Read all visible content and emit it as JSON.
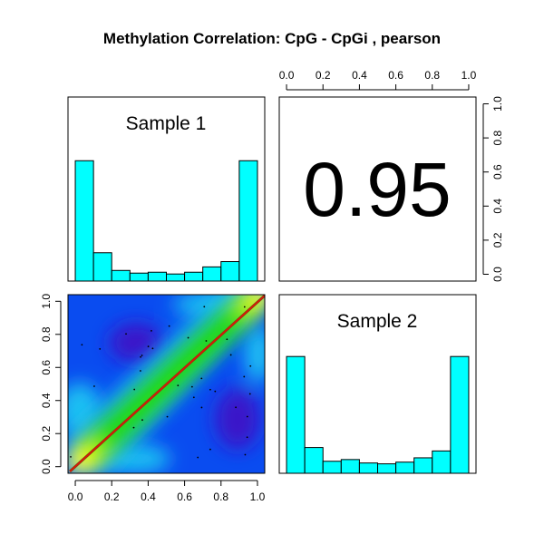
{
  "chart_data": {
    "type": "pairs",
    "title": "Methylation Correlation: CpG - CpGi , pearson",
    "samples": [
      "Sample 1",
      "Sample 2"
    ],
    "correlation": "0.95",
    "colors": {
      "histogram_fill": "#00ffff",
      "fit_line": "#ff0000",
      "smooth_line": "#8b4513",
      "frame": "#000000"
    },
    "axis_ticks": [
      "0.0",
      "0.2",
      "0.4",
      "0.6",
      "0.8",
      "1.0"
    ],
    "axis_range": [
      -0.04,
      1.04
    ],
    "histograms": [
      {
        "name": "Sample 1",
        "bins": [
          0,
          0.1,
          0.2,
          0.3,
          0.4,
          0.5,
          0.6,
          0.7,
          0.8,
          0.9,
          1.0
        ],
        "values": [
          0.68,
          0.16,
          0.06,
          0.045,
          0.05,
          0.04,
          0.05,
          0.08,
          0.11,
          0.68
        ],
        "ylim": [
          0,
          1.04
        ]
      },
      {
        "name": "Sample 2",
        "bins": [
          0,
          0.1,
          0.2,
          0.3,
          0.4,
          0.5,
          0.6,
          0.7,
          0.8,
          0.9,
          1.0
        ],
        "values": [
          0.68,
          0.15,
          0.07,
          0.08,
          0.06,
          0.055,
          0.065,
          0.09,
          0.13,
          0.68
        ],
        "ylim": [
          0,
          1.04
        ]
      }
    ],
    "scatter": {
      "type": "smooth-scatter-density",
      "x_range": [
        -0.04,
        1.04
      ],
      "y_range": [
        -0.04,
        1.04
      ],
      "fit_line": {
        "intercept": 0.0,
        "slope": 1.0
      }
    }
  }
}
